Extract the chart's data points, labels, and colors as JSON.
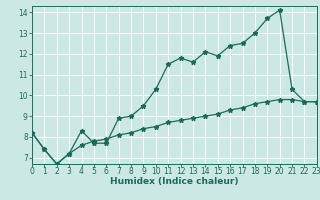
{
  "title": "",
  "xlabel": "Humidex (Indice chaleur)",
  "ylabel": "",
  "background_color": "#cce8e4",
  "grid_color": "#ffffff",
  "line_color": "#1a6b5a",
  "x_data": [
    0,
    1,
    2,
    3,
    4,
    5,
    6,
    7,
    8,
    9,
    10,
    11,
    12,
    13,
    14,
    15,
    16,
    17,
    18,
    19,
    20,
    21,
    22,
    23
  ],
  "y1_data": [
    8.2,
    7.4,
    6.7,
    7.2,
    8.3,
    7.7,
    7.7,
    8.9,
    9.0,
    9.5,
    10.3,
    11.5,
    11.8,
    11.6,
    12.1,
    11.9,
    12.4,
    12.5,
    13.0,
    13.7,
    14.1,
    10.3,
    9.7,
    9.7
  ],
  "y2_data": [
    8.2,
    7.4,
    6.7,
    7.2,
    7.6,
    7.8,
    7.9,
    8.1,
    8.2,
    8.4,
    8.5,
    8.7,
    8.8,
    8.9,
    9.0,
    9.1,
    9.3,
    9.4,
    9.6,
    9.7,
    9.8,
    9.8,
    9.7,
    9.7
  ],
  "xlim": [
    0,
    23
  ],
  "ylim": [
    6.7,
    14.3
  ],
  "yticks": [
    7,
    8,
    9,
    10,
    11,
    12,
    13,
    14
  ],
  "xticks": [
    0,
    1,
    2,
    3,
    4,
    5,
    6,
    7,
    8,
    9,
    10,
    11,
    12,
    13,
    14,
    15,
    16,
    17,
    18,
    19,
    20,
    21,
    22,
    23
  ],
  "marker": "*",
  "markersize": 3.5,
  "linewidth": 0.9,
  "xlabel_fontsize": 6.5,
  "tick_fontsize": 5.5
}
